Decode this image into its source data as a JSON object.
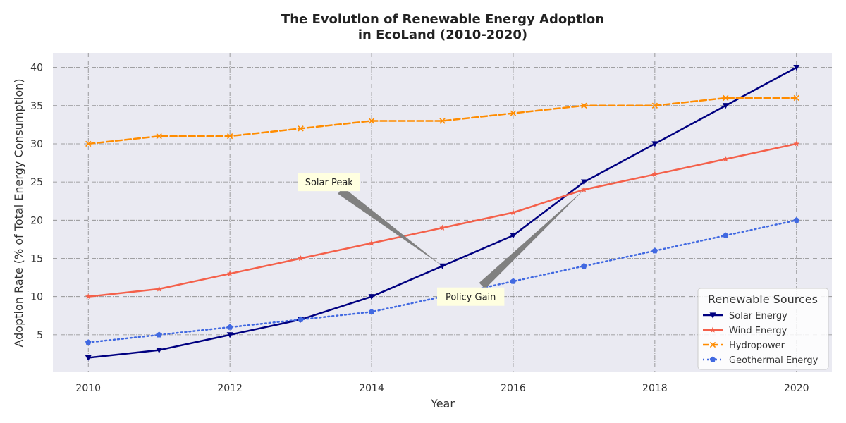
{
  "chart_data": {
    "type": "line",
    "title_line1": "The Evolution of Renewable Energy Adoption",
    "title_line2": "in EcoLand (2010-2020)",
    "xlabel": "Year",
    "ylabel": "Adoption Rate (% of Total Energy Consumption)",
    "x": [
      2010,
      2011,
      2012,
      2013,
      2014,
      2015,
      2016,
      2017,
      2018,
      2019,
      2020
    ],
    "xlim": [
      2009.5,
      2020.5
    ],
    "ylim": [
      0.1,
      41.9
    ],
    "xticks": [
      "2010",
      "2012",
      "2014",
      "2016",
      "2018",
      "2020"
    ],
    "yticks": [
      "5",
      "10",
      "15",
      "20",
      "25",
      "30",
      "35",
      "40"
    ],
    "grid": true,
    "legend": {
      "title": "Renewable Sources",
      "position": "bottom-right"
    },
    "series": [
      {
        "name": "Solar Energy",
        "values": [
          2,
          3,
          5,
          7,
          10,
          14,
          18,
          25,
          30,
          35,
          40
        ],
        "color": "#000080",
        "style": "solid",
        "marker": "triangle-down"
      },
      {
        "name": "Wind Energy",
        "values": [
          10,
          11,
          13,
          15,
          17,
          19,
          21,
          24,
          26,
          28,
          30
        ],
        "color": "#f4604a",
        "style": "solid",
        "marker": "star"
      },
      {
        "name": "Hydropower",
        "values": [
          30,
          31,
          31,
          32,
          33,
          33,
          34,
          35,
          35,
          36,
          36
        ],
        "color": "#ff8c00",
        "style": "dashed",
        "marker": "x"
      },
      {
        "name": "Geothermal Energy",
        "values": [
          4,
          5,
          6,
          7,
          8,
          10,
          12,
          14,
          16,
          18,
          20
        ],
        "color": "#4169e1",
        "style": "dotted",
        "marker": "pentagon"
      }
    ],
    "annotations": [
      {
        "text": "Solar Peak",
        "point": [
          2015,
          14
        ],
        "label_at": [
          2013.4,
          25
        ]
      },
      {
        "text": "Policy Gain",
        "point": [
          2017,
          24
        ],
        "label_at": [
          2015.4,
          10
        ]
      }
    ],
    "colors": {
      "plot_background": "#eaeaf2",
      "grid": "#888888",
      "annotation_box": "#ffffe0",
      "arrow": "#808080"
    }
  }
}
